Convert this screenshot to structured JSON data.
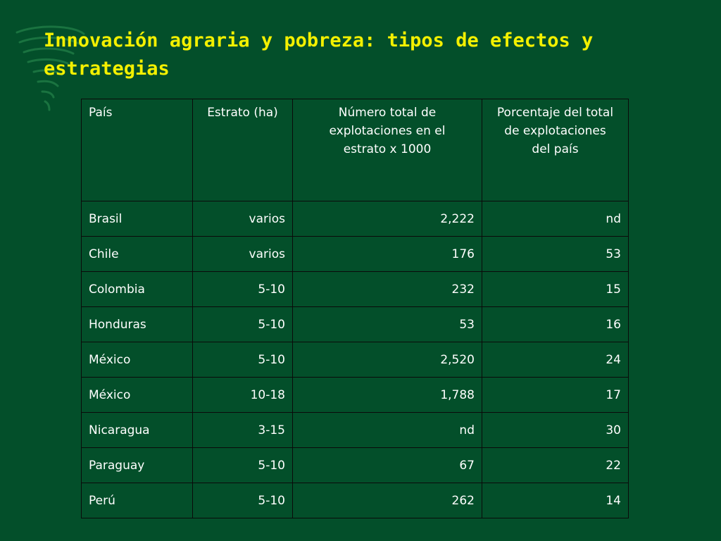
{
  "slide": {
    "title": "Innovación agraria y pobreza: tipos de efectos y estrategias"
  },
  "table": {
    "headers": [
      "País",
      "Estrato (ha)",
      "Número total de explotaciones en el estrato x 1000",
      "Porcentaje del total de explotaciones del país"
    ],
    "rows": [
      [
        "Brasil",
        "varios",
        "2,222",
        "nd"
      ],
      [
        "Chile",
        "varios",
        "176",
        "53"
      ],
      [
        "Colombia",
        "5-10",
        "232",
        "15"
      ],
      [
        "Honduras",
        "5-10",
        "53",
        "16"
      ],
      [
        "México",
        "5-10",
        "2,520",
        "24"
      ],
      [
        "México",
        "10-18",
        "1,788",
        "17"
      ],
      [
        "Nicaragua",
        "3-15",
        "nd",
        "30"
      ],
      [
        "Paraguay",
        "5-10",
        "67",
        "22"
      ],
      [
        "Perú",
        "5-10",
        "262",
        "14"
      ]
    ]
  },
  "colors": {
    "background": "#034f2a",
    "title": "#f3f000",
    "text": "#ffffff",
    "grid": "#0a0a0a"
  },
  "icons": {
    "logo": "swirl-logo-icon"
  }
}
